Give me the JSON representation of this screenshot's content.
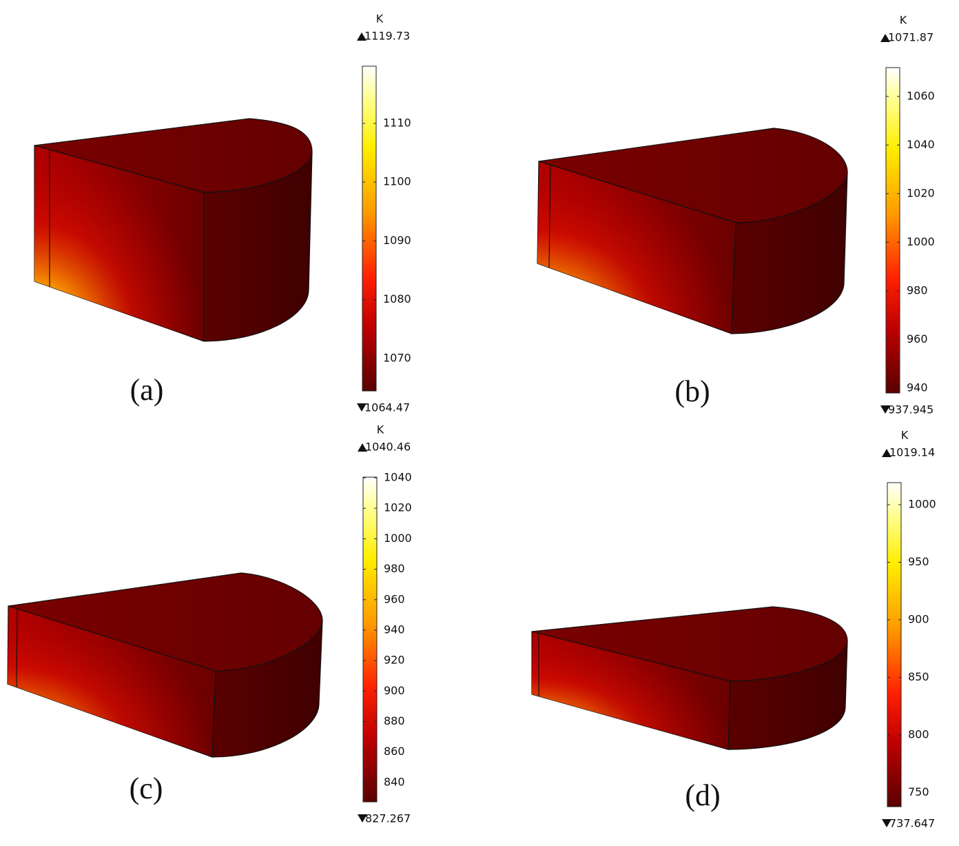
{
  "chart_data": [
    {
      "type": "colorbar",
      "label": "(a)",
      "unit": "K",
      "clim": [
        1064.47,
        1119.73
      ],
      "ticks": [
        1070,
        1080,
        1090,
        1100,
        1110
      ]
    },
    {
      "type": "colorbar",
      "label": "(b)",
      "unit": "K",
      "clim": [
        937.945,
        1071.87
      ],
      "ticks": [
        940,
        960,
        980,
        1000,
        1020,
        1040,
        1060
      ]
    },
    {
      "type": "colorbar",
      "label": "(c)",
      "unit": "K",
      "clim": [
        827.267,
        1040.46
      ],
      "ticks": [
        840,
        860,
        880,
        900,
        920,
        940,
        960,
        980,
        1000,
        1020,
        1040
      ]
    },
    {
      "type": "colorbar",
      "label": "(d)",
      "unit": "K",
      "clim": [
        737.647,
        1019.14
      ],
      "ticks": [
        750,
        800,
        850,
        900,
        950,
        1000
      ]
    }
  ]
}
